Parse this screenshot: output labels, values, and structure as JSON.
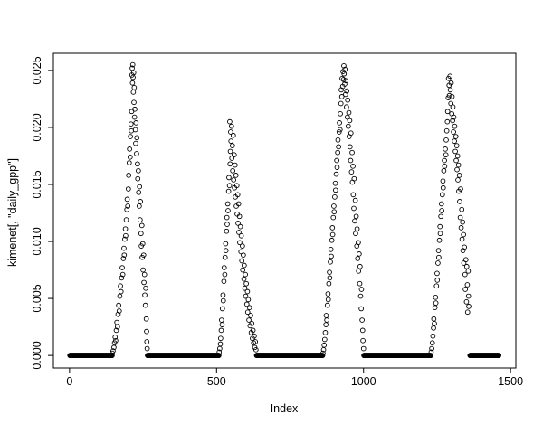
{
  "figure": {
    "background": "#ffffff",
    "foreground": "#000000"
  },
  "chart_data": {
    "type": "scatter",
    "title": "",
    "xlabel": "Index",
    "ylabel": "kimenet[, \"daily_gpp\"]",
    "marker": "open-circle",
    "marker_color": "#000000",
    "grid": false,
    "legend": "none",
    "xlim": [
      -55,
      1518
    ],
    "ylim": [
      -0.0011,
      0.0265
    ],
    "xticks": [
      0,
      500,
      1000,
      1500
    ],
    "xtick_labels": [
      "0",
      "500",
      "1000",
      "1500"
    ],
    "yticks": [
      0,
      0.005,
      0.01,
      0.015,
      0.02,
      0.025
    ],
    "ytick_labels": [
      "0.000",
      "0.005",
      "0.010",
      "0.015",
      "0.020",
      "0.025"
    ],
    "zero_value": 0,
    "zero_runs": [
      [
        1,
        145
      ],
      [
        265,
        508
      ],
      [
        636,
        861
      ],
      [
        1001,
        1229
      ],
      [
        1362,
        1460
      ]
    ],
    "points": [
      [
        145,
        0.0002
      ],
      [
        148,
        0.0004
      ],
      [
        151,
        0.0007
      ],
      [
        153,
        0.0011
      ],
      [
        155,
        0.0016
      ],
      [
        157,
        0.0013
      ],
      [
        159,
        0.0022
      ],
      [
        161,
        0.0029
      ],
      [
        163,
        0.0025
      ],
      [
        165,
        0.0036
      ],
      [
        167,
        0.0044
      ],
      [
        169,
        0.0039
      ],
      [
        171,
        0.0052
      ],
      [
        173,
        0.0061
      ],
      [
        175,
        0.0056
      ],
      [
        177,
        0.0068
      ],
      [
        179,
        0.0077
      ],
      [
        181,
        0.0071
      ],
      [
        183,
        0.0085
      ],
      [
        185,
        0.0094
      ],
      [
        186,
        0.0088
      ],
      [
        188,
        0.0102
      ],
      [
        190,
        0.0111
      ],
      [
        191,
        0.0105
      ],
      [
        193,
        0.0119
      ],
      [
        195,
        0.0128
      ],
      [
        196,
        0.0137
      ],
      [
        198,
        0.0131
      ],
      [
        200,
        0.0146
      ],
      [
        201,
        0.0158
      ],
      [
        203,
        0.0169
      ],
      [
        204,
        0.0181
      ],
      [
        206,
        0.0174
      ],
      [
        207,
        0.0192
      ],
      [
        209,
        0.0203
      ],
      [
        210,
        0.0197
      ],
      [
        211,
        0.0214
      ],
      [
        212,
        0.0246
      ],
      [
        213,
        0.0252
      ],
      [
        214,
        0.0239
      ],
      [
        215,
        0.0255
      ],
      [
        216,
        0.0244
      ],
      [
        217,
        0.0231
      ],
      [
        218,
        0.0248
      ],
      [
        219,
        0.0222
      ],
      [
        220,
        0.0235
      ],
      [
        221,
        0.0209
      ],
      [
        222,
        0.0216
      ],
      [
        224,
        0.0198
      ],
      [
        225,
        0.0186
      ],
      [
        226,
        0.0204
      ],
      [
        228,
        0.0177
      ],
      [
        229,
        0.0191
      ],
      [
        231,
        0.0168
      ],
      [
        232,
        0.0155
      ],
      [
        234,
        0.0162
      ],
      [
        235,
        0.0143
      ],
      [
        237,
        0.0131
      ],
      [
        238,
        0.0148
      ],
      [
        240,
        0.0119
      ],
      [
        241,
        0.0135
      ],
      [
        243,
        0.0107
      ],
      [
        244,
        0.0096
      ],
      [
        246,
        0.0114
      ],
      [
        247,
        0.0086
      ],
      [
        249,
        0.0098
      ],
      [
        250,
        0.0075
      ],
      [
        252,
        0.0088
      ],
      [
        253,
        0.0064
      ],
      [
        255,
        0.0071
      ],
      [
        256,
        0.0053
      ],
      [
        258,
        0.0044
      ],
      [
        259,
        0.0059
      ],
      [
        261,
        0.0032
      ],
      [
        262,
        0.0021
      ],
      [
        263,
        0.0012
      ],
      [
        264,
        0.0006
      ],
      [
        509,
        0.0003
      ],
      [
        511,
        0.0006
      ],
      [
        513,
        0.001
      ],
      [
        514,
        0.0015
      ],
      [
        516,
        0.0022
      ],
      [
        517,
        0.0031
      ],
      [
        519,
        0.0027
      ],
      [
        520,
        0.0041
      ],
      [
        522,
        0.0053
      ],
      [
        523,
        0.0048
      ],
      [
        525,
        0.0065
      ],
      [
        526,
        0.0077
      ],
      [
        528,
        0.0071
      ],
      [
        529,
        0.0086
      ],
      [
        531,
        0.0098
      ],
      [
        532,
        0.0092
      ],
      [
        534,
        0.0109
      ],
      [
        535,
        0.0121
      ],
      [
        536,
        0.0115
      ],
      [
        538,
        0.0133
      ],
      [
        539,
        0.0127
      ],
      [
        541,
        0.0144
      ],
      [
        542,
        0.0156
      ],
      [
        544,
        0.0149
      ],
      [
        545,
        0.0205
      ],
      [
        546,
        0.0168
      ],
      [
        547,
        0.0179
      ],
      [
        548,
        0.0196
      ],
      [
        549,
        0.0188
      ],
      [
        551,
        0.0201
      ],
      [
        552,
        0.0173
      ],
      [
        554,
        0.0184
      ],
      [
        555,
        0.0162
      ],
      [
        557,
        0.0193
      ],
      [
        558,
        0.0154
      ],
      [
        560,
        0.0176
      ],
      [
        561,
        0.0147
      ],
      [
        563,
        0.0167
      ],
      [
        564,
        0.0139
      ],
      [
        566,
        0.0158
      ],
      [
        567,
        0.0131
      ],
      [
        569,
        0.0149
      ],
      [
        570,
        0.0124
      ],
      [
        572,
        0.0141
      ],
      [
        573,
        0.0116
      ],
      [
        575,
        0.0133
      ],
      [
        576,
        0.0108
      ],
      [
        578,
        0.0122
      ],
      [
        579,
        0.0099
      ],
      [
        581,
        0.0113
      ],
      [
        583,
        0.0091
      ],
      [
        584,
        0.0105
      ],
      [
        586,
        0.0083
      ],
      [
        588,
        0.0096
      ],
      [
        589,
        0.0075
      ],
      [
        591,
        0.0088
      ],
      [
        593,
        0.0067
      ],
      [
        594,
        0.0079
      ],
      [
        596,
        0.0059
      ],
      [
        598,
        0.0071
      ],
      [
        599,
        0.0052
      ],
      [
        601,
        0.0063
      ],
      [
        603,
        0.0045
      ],
      [
        605,
        0.0056
      ],
      [
        606,
        0.0038
      ],
      [
        608,
        0.0049
      ],
      [
        610,
        0.0031
      ],
      [
        612,
        0.0042
      ],
      [
        614,
        0.0026
      ],
      [
        616,
        0.0035
      ],
      [
        618,
        0.002
      ],
      [
        620,
        0.0028
      ],
      [
        622,
        0.0015
      ],
      [
        624,
        0.0022
      ],
      [
        626,
        0.0011
      ],
      [
        628,
        0.0017
      ],
      [
        630,
        0.0007
      ],
      [
        632,
        0.0012
      ],
      [
        634,
        0.0005
      ],
      [
        862,
        0.0002
      ],
      [
        864,
        0.0005
      ],
      [
        866,
        0.0009
      ],
      [
        868,
        0.0014
      ],
      [
        870,
        0.002
      ],
      [
        872,
        0.0027
      ],
      [
        873,
        0.0035
      ],
      [
        875,
        0.0031
      ],
      [
        877,
        0.0044
      ],
      [
        879,
        0.0054
      ],
      [
        880,
        0.0049
      ],
      [
        882,
        0.0063
      ],
      [
        884,
        0.0073
      ],
      [
        885,
        0.0068
      ],
      [
        887,
        0.0082
      ],
      [
        889,
        0.0093
      ],
      [
        890,
        0.0087
      ],
      [
        892,
        0.0101
      ],
      [
        894,
        0.0112
      ],
      [
        895,
        0.0106
      ],
      [
        897,
        0.0121
      ],
      [
        899,
        0.0131
      ],
      [
        900,
        0.0126
      ],
      [
        902,
        0.0139
      ],
      [
        904,
        0.0151
      ],
      [
        905,
        0.0145
      ],
      [
        907,
        0.0159
      ],
      [
        909,
        0.0171
      ],
      [
        910,
        0.0165
      ],
      [
        912,
        0.0178
      ],
      [
        913,
        0.0189
      ],
      [
        915,
        0.0183
      ],
      [
        917,
        0.0196
      ],
      [
        918,
        0.0204
      ],
      [
        920,
        0.0198
      ],
      [
        921,
        0.0212
      ],
      [
        923,
        0.0221
      ],
      [
        924,
        0.0233
      ],
      [
        926,
        0.0227
      ],
      [
        927,
        0.0243
      ],
      [
        929,
        0.0236
      ],
      [
        930,
        0.0249
      ],
      [
        932,
        0.0242
      ],
      [
        933,
        0.0254
      ],
      [
        934,
        0.0247
      ],
      [
        936,
        0.0238
      ],
      [
        937,
        0.0251
      ],
      [
        939,
        0.0229
      ],
      [
        940,
        0.0241
      ],
      [
        942,
        0.0218
      ],
      [
        943,
        0.0232
      ],
      [
        945,
        0.0209
      ],
      [
        946,
        0.0224
      ],
      [
        948,
        0.0201
      ],
      [
        950,
        0.0213
      ],
      [
        951,
        0.0192
      ],
      [
        953,
        0.0206
      ],
      [
        954,
        0.0183
      ],
      [
        956,
        0.0171
      ],
      [
        957,
        0.0195
      ],
      [
        959,
        0.0161
      ],
      [
        961,
        0.0178
      ],
      [
        962,
        0.0152
      ],
      [
        964,
        0.0166
      ],
      [
        965,
        0.0141
      ],
      [
        967,
        0.0129
      ],
      [
        968,
        0.0155
      ],
      [
        970,
        0.0118
      ],
      [
        972,
        0.0136
      ],
      [
        973,
        0.0107
      ],
      [
        975,
        0.0122
      ],
      [
        977,
        0.0096
      ],
      [
        978,
        0.0111
      ],
      [
        980,
        0.0085
      ],
      [
        982,
        0.0099
      ],
      [
        983,
        0.0074
      ],
      [
        985,
        0.0089
      ],
      [
        987,
        0.0063
      ],
      [
        988,
        0.0078
      ],
      [
        990,
        0.0052
      ],
      [
        992,
        0.0041
      ],
      [
        993,
        0.0058
      ],
      [
        995,
        0.0031
      ],
      [
        997,
        0.0022
      ],
      [
        998,
        0.0013
      ],
      [
        1000,
        0.0006
      ],
      [
        1230,
        0.0003
      ],
      [
        1232,
        0.0006
      ],
      [
        1234,
        0.0011
      ],
      [
        1236,
        0.0017
      ],
      [
        1238,
        0.0024
      ],
      [
        1239,
        0.0032
      ],
      [
        1241,
        0.0028
      ],
      [
        1243,
        0.0042
      ],
      [
        1245,
        0.0051
      ],
      [
        1246,
        0.0046
      ],
      [
        1248,
        0.0061
      ],
      [
        1250,
        0.0072
      ],
      [
        1251,
        0.0066
      ],
      [
        1253,
        0.0081
      ],
      [
        1255,
        0.0092
      ],
      [
        1256,
        0.0086
      ],
      [
        1258,
        0.0101
      ],
      [
        1260,
        0.0113
      ],
      [
        1261,
        0.0107
      ],
      [
        1263,
        0.0122
      ],
      [
        1265,
        0.0133
      ],
      [
        1266,
        0.0127
      ],
      [
        1268,
        0.0141
      ],
      [
        1270,
        0.0153
      ],
      [
        1271,
        0.0147
      ],
      [
        1273,
        0.0162
      ],
      [
        1275,
        0.0171
      ],
      [
        1276,
        0.0166
      ],
      [
        1278,
        0.0181
      ],
      [
        1280,
        0.0176
      ],
      [
        1281,
        0.0189
      ],
      [
        1283,
        0.0197
      ],
      [
        1285,
        0.0205
      ],
      [
        1286,
        0.0214
      ],
      [
        1288,
        0.0226
      ],
      [
        1289,
        0.0243
      ],
      [
        1291,
        0.0237
      ],
      [
        1292,
        0.0228
      ],
      [
        1294,
        0.0245
      ],
      [
        1295,
        0.0233
      ],
      [
        1297,
        0.0221
      ],
      [
        1298,
        0.0239
      ],
      [
        1300,
        0.0212
      ],
      [
        1301,
        0.0227
      ],
      [
        1303,
        0.0206
      ],
      [
        1304,
        0.0218
      ],
      [
        1306,
        0.0196
      ],
      [
        1307,
        0.0209
      ],
      [
        1309,
        0.0188
      ],
      [
        1310,
        0.0201
      ],
      [
        1312,
        0.0179
      ],
      [
        1314,
        0.0192
      ],
      [
        1315,
        0.0171
      ],
      [
        1317,
        0.0184
      ],
      [
        1318,
        0.0163
      ],
      [
        1320,
        0.0175
      ],
      [
        1321,
        0.0154
      ],
      [
        1323,
        0.0167
      ],
      [
        1324,
        0.0144
      ],
      [
        1326,
        0.0158
      ],
      [
        1327,
        0.0135
      ],
      [
        1329,
        0.0121
      ],
      [
        1330,
        0.0146
      ],
      [
        1332,
        0.0112
      ],
      [
        1334,
        0.0128
      ],
      [
        1335,
        0.0102
      ],
      [
        1337,
        0.0117
      ],
      [
        1338,
        0.0092
      ],
      [
        1340,
        0.0106
      ],
      [
        1341,
        0.0081
      ],
      [
        1343,
        0.0095
      ],
      [
        1345,
        0.0071
      ],
      [
        1346,
        0.0058
      ],
      [
        1348,
        0.0084
      ],
      [
        1350,
        0.0047
      ],
      [
        1351,
        0.0078
      ],
      [
        1353,
        0.0062
      ],
      [
        1354,
        0.0038
      ],
      [
        1356,
        0.0074
      ],
      [
        1357,
        0.0052
      ],
      [
        1358,
        0.0043
      ]
    ]
  }
}
